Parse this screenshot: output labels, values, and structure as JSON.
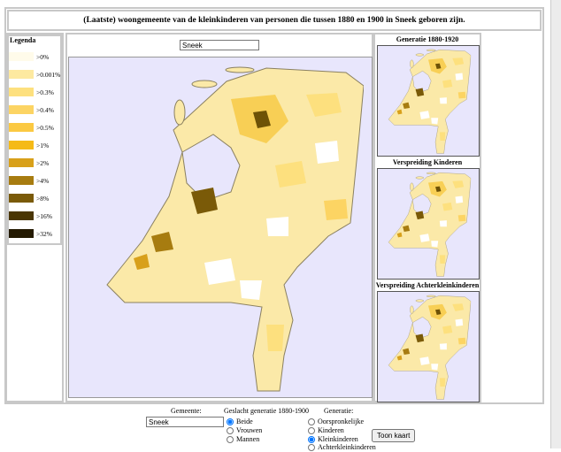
{
  "title": "(Laatste) woongemeente van de kleinkinderen van personen die tussen 1880 en 1900 in Sneek geboren zijn.",
  "legend": {
    "title": "Legenda",
    "items": [
      {
        "label": ">0%",
        "color": "#fffbea"
      },
      {
        "label": ">0.001%",
        "color": "#fde9a0"
      },
      {
        "label": ">0.3%",
        "color": "#fde07e"
      },
      {
        "label": ">0.4%",
        "color": "#fcd463"
      },
      {
        "label": ">0.5%",
        "color": "#fbc942"
      },
      {
        "label": ">1%",
        "color": "#f5ba17"
      },
      {
        "label": ">2%",
        "color": "#d8a01a"
      },
      {
        "label": ">4%",
        "color": "#a77c10"
      },
      {
        "label": ">8%",
        "color": "#7a5a08"
      },
      {
        "label": ">16%",
        "color": "#4a3604"
      },
      {
        "label": ">32%",
        "color": "#241a02"
      }
    ]
  },
  "map": {
    "search": "Sneek"
  },
  "side_maps": [
    "Generatie 1880-1920",
    "Verspreiding Kinderen",
    "Verspreiding Achterkleinkinderen"
  ],
  "form": {
    "gemeente_label": "Gemeente:",
    "gemeente_value": "Sneek",
    "geslacht_label": "Geslacht generatie 1880-1900",
    "geslacht_options": [
      "Beide",
      "Vrouwen",
      "Mannen"
    ],
    "generatie_label": "Generatie:",
    "generatie_options": [
      "Oorspronkelijke",
      "Kinderen",
      "Kleinkinderen",
      "Achterkleinkinderen"
    ],
    "button": "Toon kaart"
  }
}
